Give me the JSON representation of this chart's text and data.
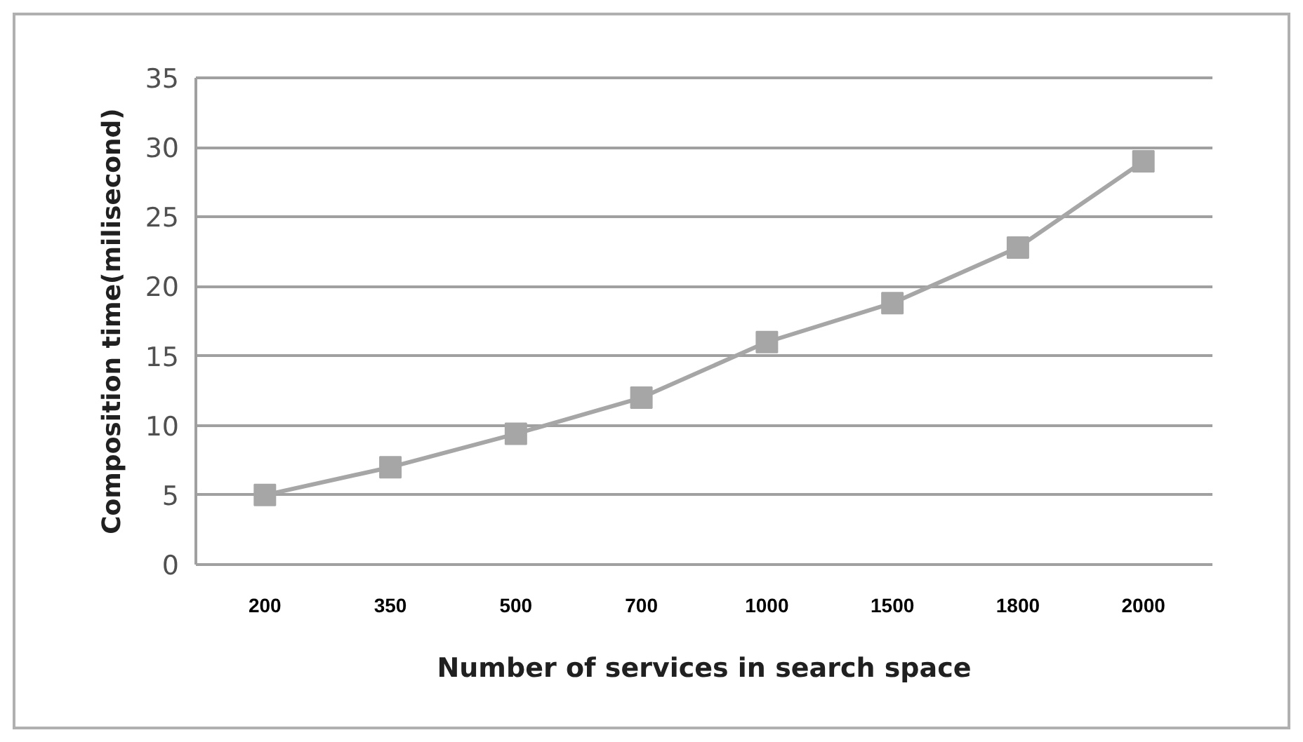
{
  "chart_data": {
    "type": "line",
    "categories": [
      "200",
      "350",
      "500",
      "700",
      "1000",
      "1500",
      "1800",
      "2000"
    ],
    "xlabel": "Number of services in search space",
    "ylabel": "Composition time(milisecond)",
    "series": [
      {
        "color": "#a6a6a6",
        "values": [
          5,
          7,
          9.4,
          12,
          16,
          18.8,
          22.8,
          29
        ]
      }
    ],
    "ylim": [
      0,
      35
    ],
    "yticks": [
      0,
      5,
      10,
      15,
      20,
      25,
      30,
      35
    ],
    "grid": "y",
    "marker": "square",
    "line_style": "solid"
  }
}
